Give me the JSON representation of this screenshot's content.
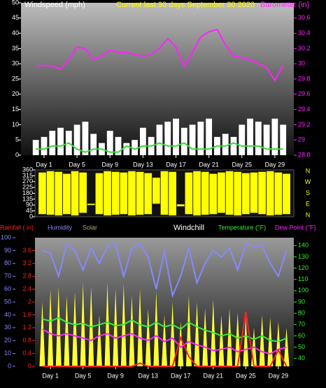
{
  "chart_data": [
    {
      "type": "combo",
      "title": "Current last 30 days September 30 2020",
      "y_label": "Windspeed (mph)",
      "y2_label": "Barometer (in)",
      "x": [
        0,
        1,
        2,
        3,
        4,
        5,
        6,
        7,
        8,
        9,
        10,
        11,
        12,
        13,
        14,
        15,
        16,
        17,
        18,
        19,
        20,
        21,
        22,
        23,
        24,
        25,
        26,
        27,
        28,
        29,
        30
      ],
      "xlim": [
        -1.8,
        31.3
      ],
      "xticks": [
        {
          "value": 1,
          "label": "Day 1"
        },
        {
          "value": 5,
          "label": "Day 5"
        },
        {
          "value": 9,
          "label": "Day 9"
        },
        {
          "value": 13,
          "label": "Day 13"
        },
        {
          "value": 17,
          "label": "Day 17"
        },
        {
          "value": 21,
          "label": "Day 21"
        },
        {
          "value": 25,
          "label": "Day 25"
        },
        {
          "value": 29,
          "label": "Day 29"
        }
      ],
      "ylim": [
        0,
        50
      ],
      "yticks": [
        0,
        5,
        10,
        15,
        20,
        25,
        30,
        35,
        40,
        45,
        50
      ],
      "y2lim": [
        28.8,
        30.8
      ],
      "y2ticks": [
        28.8,
        29,
        29.2,
        29.4,
        29.6,
        29.8,
        30,
        30.2,
        30.4,
        30.6
      ],
      "series": [
        {
          "kind": "bar",
          "color": "#ffffff",
          "values": [
            5,
            6,
            8,
            9,
            8,
            10,
            11,
            7,
            4,
            8,
            6,
            4,
            5,
            9,
            6,
            10,
            11,
            12,
            9,
            10,
            11,
            12,
            6,
            7,
            6,
            10,
            12,
            11,
            10,
            12,
            10
          ]
        },
        {
          "kind": "line",
          "color": "#33dd33",
          "values": [
            2,
            2,
            3,
            3,
            4,
            2,
            1,
            2,
            2,
            1,
            1,
            3,
            2,
            3,
            3,
            4,
            3,
            3,
            4,
            2,
            2,
            2,
            3,
            3,
            4,
            3,
            3,
            3,
            2,
            2,
            2
          ]
        },
        {
          "kind": "line",
          "axis": "y2",
          "color": "#ff22ff",
          "values": [
            29.97,
            29.98,
            29.97,
            29.93,
            30.05,
            30.22,
            30.2,
            30.05,
            30.1,
            30.18,
            30.15,
            30.15,
            30.12,
            30.1,
            30.12,
            30.2,
            30.33,
            30.22,
            29.96,
            30.15,
            30.35,
            30.42,
            30.45,
            30.25,
            30.1,
            30.08,
            30.05,
            30,
            29.95,
            29.78,
            29.98
          ]
        }
      ]
    },
    {
      "type": "range",
      "x": [
        0,
        1,
        2,
        3,
        4,
        5,
        6,
        7,
        8,
        9,
        10,
        11,
        12,
        13,
        14,
        15,
        16,
        17,
        18,
        19,
        20,
        21,
        22,
        23,
        24,
        25,
        26,
        27,
        28,
        29,
        30
      ],
      "xlim": [
        -0.9,
        30.9
      ],
      "ylim": [
        0,
        360
      ],
      "yticks": [
        0,
        45,
        90,
        135,
        180,
        225,
        270,
        315,
        360
      ],
      "annotations": [
        "N",
        "W",
        "S",
        "E",
        "N"
      ],
      "series": [
        {
          "color": "#ffff00",
          "low": [
            20,
            15,
            10,
            20,
            10,
            30,
            90,
            20,
            10,
            15,
            20,
            10,
            15,
            20,
            100,
            15,
            10,
            80,
            20,
            10,
            15,
            20,
            30,
            15,
            10,
            20,
            30,
            20,
            10,
            15,
            20
          ],
          "high": [
            340,
            350,
            345,
            330,
            350,
            340,
            100,
            335,
            350,
            345,
            340,
            350,
            345,
            335,
            300,
            350,
            345,
            95,
            340,
            350,
            345,
            330,
            340,
            350,
            345,
            335,
            340,
            345,
            350,
            340,
            330
          ]
        }
      ]
    },
    {
      "type": "combo",
      "windchill_label": "Windchill",
      "x": [
        0,
        1,
        2,
        3,
        4,
        5,
        6,
        7,
        8,
        9,
        10,
        11,
        12,
        13,
        14,
        15,
        16,
        17,
        18,
        19,
        20,
        21,
        22,
        23,
        24,
        25,
        26,
        27,
        28,
        29,
        30
      ],
      "xlim": [
        -0.9,
        30.9
      ],
      "xticks": [
        {
          "value": 1,
          "label": "Day 1"
        },
        {
          "value": 5,
          "label": "Day 5"
        },
        {
          "value": 9,
          "label": "Day 9"
        },
        {
          "value": 13,
          "label": "Day 13"
        },
        {
          "value": 17,
          "label": "Day 17"
        },
        {
          "value": 21,
          "label": "Day 21"
        },
        {
          "value": 25,
          "label": "Day 25"
        },
        {
          "value": 29,
          "label": "Day 29"
        }
      ],
      "ylim": [
        0,
        4
      ],
      "yticks": [
        0,
        0.4,
        0.8,
        1.2,
        1.6,
        2,
        2.4,
        2.8,
        3.2,
        3.6
      ],
      "y2lim": [
        33,
        147
      ],
      "y2ticks": [
        40,
        50,
        60,
        70,
        80,
        90,
        100,
        110,
        120,
        130,
        140
      ],
      "y3lim": [
        0,
        100
      ],
      "y3ticks": [
        0,
        10,
        20,
        30,
        40,
        50,
        60,
        70,
        80,
        90,
        100
      ],
      "series": [
        {
          "name": "Solar",
          "kind": "spike",
          "axis": "y3",
          "color": "#ffff33",
          "label_color": "#b8a878",
          "values": [
            50,
            60,
            62,
            55,
            58,
            65,
            62,
            40,
            65,
            60,
            64,
            55,
            60,
            45,
            58,
            40,
            50,
            35,
            55,
            50,
            45,
            52,
            40,
            45,
            42,
            38,
            30,
            40,
            38,
            35,
            30
          ]
        },
        {
          "name": "Humidity",
          "kind": "line",
          "axis": "y3",
          "color": "#8888ff",
          "values": [
            90,
            88,
            70,
            95,
            90,
            75,
            92,
            80,
            93,
            95,
            70,
            92,
            95,
            85,
            60,
            90,
            55,
            70,
            92,
            65,
            80,
            90,
            85,
            92,
            75,
            95,
            93,
            94,
            80,
            70,
            90
          ]
        },
        {
          "name": "Temperature (°F)",
          "kind": "line",
          "axis": "y2",
          "color": "#33ee33",
          "values": [
            75,
            73,
            76,
            72,
            70,
            71,
            68,
            70,
            72,
            69,
            70,
            74,
            70,
            68,
            72,
            68,
            70,
            66,
            72,
            68,
            65,
            63,
            60,
            62,
            58,
            60,
            57,
            60,
            56,
            55,
            58
          ]
        },
        {
          "name": "Dew Point (°F)",
          "kind": "line",
          "axis": "y2",
          "color": "#ff22ff",
          "values": [
            66,
            62,
            60,
            62,
            60,
            58,
            56,
            60,
            62,
            58,
            60,
            62,
            58,
            56,
            60,
            55,
            58,
            50,
            55,
            52,
            50,
            47,
            48,
            50,
            46,
            48,
            50,
            46,
            44,
            48,
            50
          ]
        },
        {
          "name": "Rainfall (.in)",
          "kind": "line",
          "color": "#ff2222",
          "values": [
            0,
            0,
            0,
            0,
            0,
            0,
            0,
            0,
            0,
            0,
            0,
            0,
            0.1,
            0,
            0,
            0,
            0,
            0.9,
            0.3,
            0,
            0,
            0,
            0,
            0,
            0,
            1.7,
            0,
            0,
            0,
            0.5,
            0
          ]
        }
      ]
    }
  ]
}
